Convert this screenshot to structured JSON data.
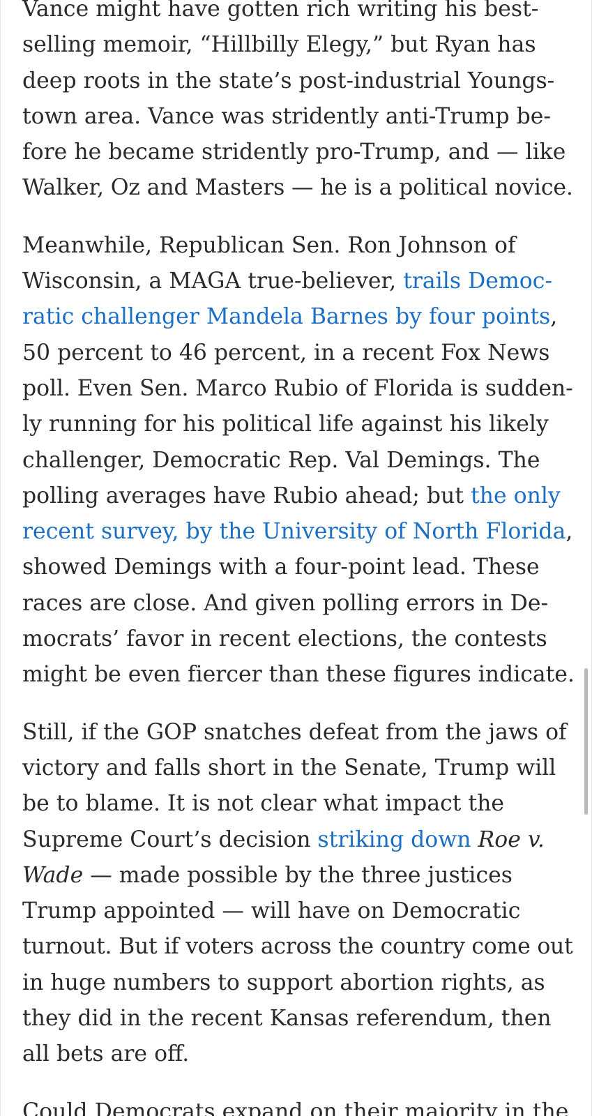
{
  "article": {
    "p1": {
      "l1": "Vance might have gotten rich writing his best-",
      "l2": "selling memoir, “Hillbilly Elegy,” but Ryan has",
      "l3": "deep roots in the state’s post-industrial Youngs-",
      "l4": "town area. Vance was stridently anti-Trump be-",
      "l5": "fore he became stridently pro-Trump, and — like",
      "l6": "Walker, Oz and Masters — he is a political novice."
    },
    "p2": {
      "l1": "Meanwhile, Republican Sen. Ron Johnson of",
      "l2_text": "Wisconsin, a MAGA true-believer, ",
      "l2_link": "trails Democ-",
      "l3_link": "ratic challenger Mandela Barnes by four points",
      "l3_text": ",",
      "l4": "50 percent to 46 percent, in a recent Fox News",
      "l5": "poll. Even Sen. Marco Rubio of Florida is sudden-",
      "l6": "ly running for his political life against his likely",
      "l7": "challenger, Democratic Rep. Val Demings. The",
      "l8_text": "polling averages have Rubio ahead; but ",
      "l8_link": "the only",
      "l9_link": "recent survey, by the University of North Florida",
      "l9_text": ",",
      "l10": "showed Demings with a four-point lead. These",
      "l11": "races are close. And given polling errors in De-",
      "l12": "mocrats’ favor in recent elections, the contests",
      "l13": "might be even fiercer than these figures indicate."
    },
    "p3": {
      "l1": "Still, if the GOP snatches defeat from the jaws of",
      "l2": "victory and falls short in the Senate, Trump will",
      "l3": "be to blame. It is not clear what impact the",
      "l4_text": "Supreme Court’s decision ",
      "l4_link": "striking down",
      "l4_italic": " Roe v.",
      "l5_italic": "Wade",
      "l5_text": " — made possible by the three justices",
      "l6": "Trump appointed — will have on Democratic",
      "l7": "turnout. But if voters across the country come out",
      "l8": "in huge numbers to support abortion rights, as",
      "l9": "they did in the recent Kansas referendum, then",
      "l10": "all bets are off."
    },
    "p4": {
      "l1": "Could Democrats expand on their majority in the"
    }
  },
  "colors": {
    "text": "#2a2a2a",
    "link": "#1a6fc4",
    "background": "#ffffff",
    "scrollbar": "#b9b9b9"
  }
}
